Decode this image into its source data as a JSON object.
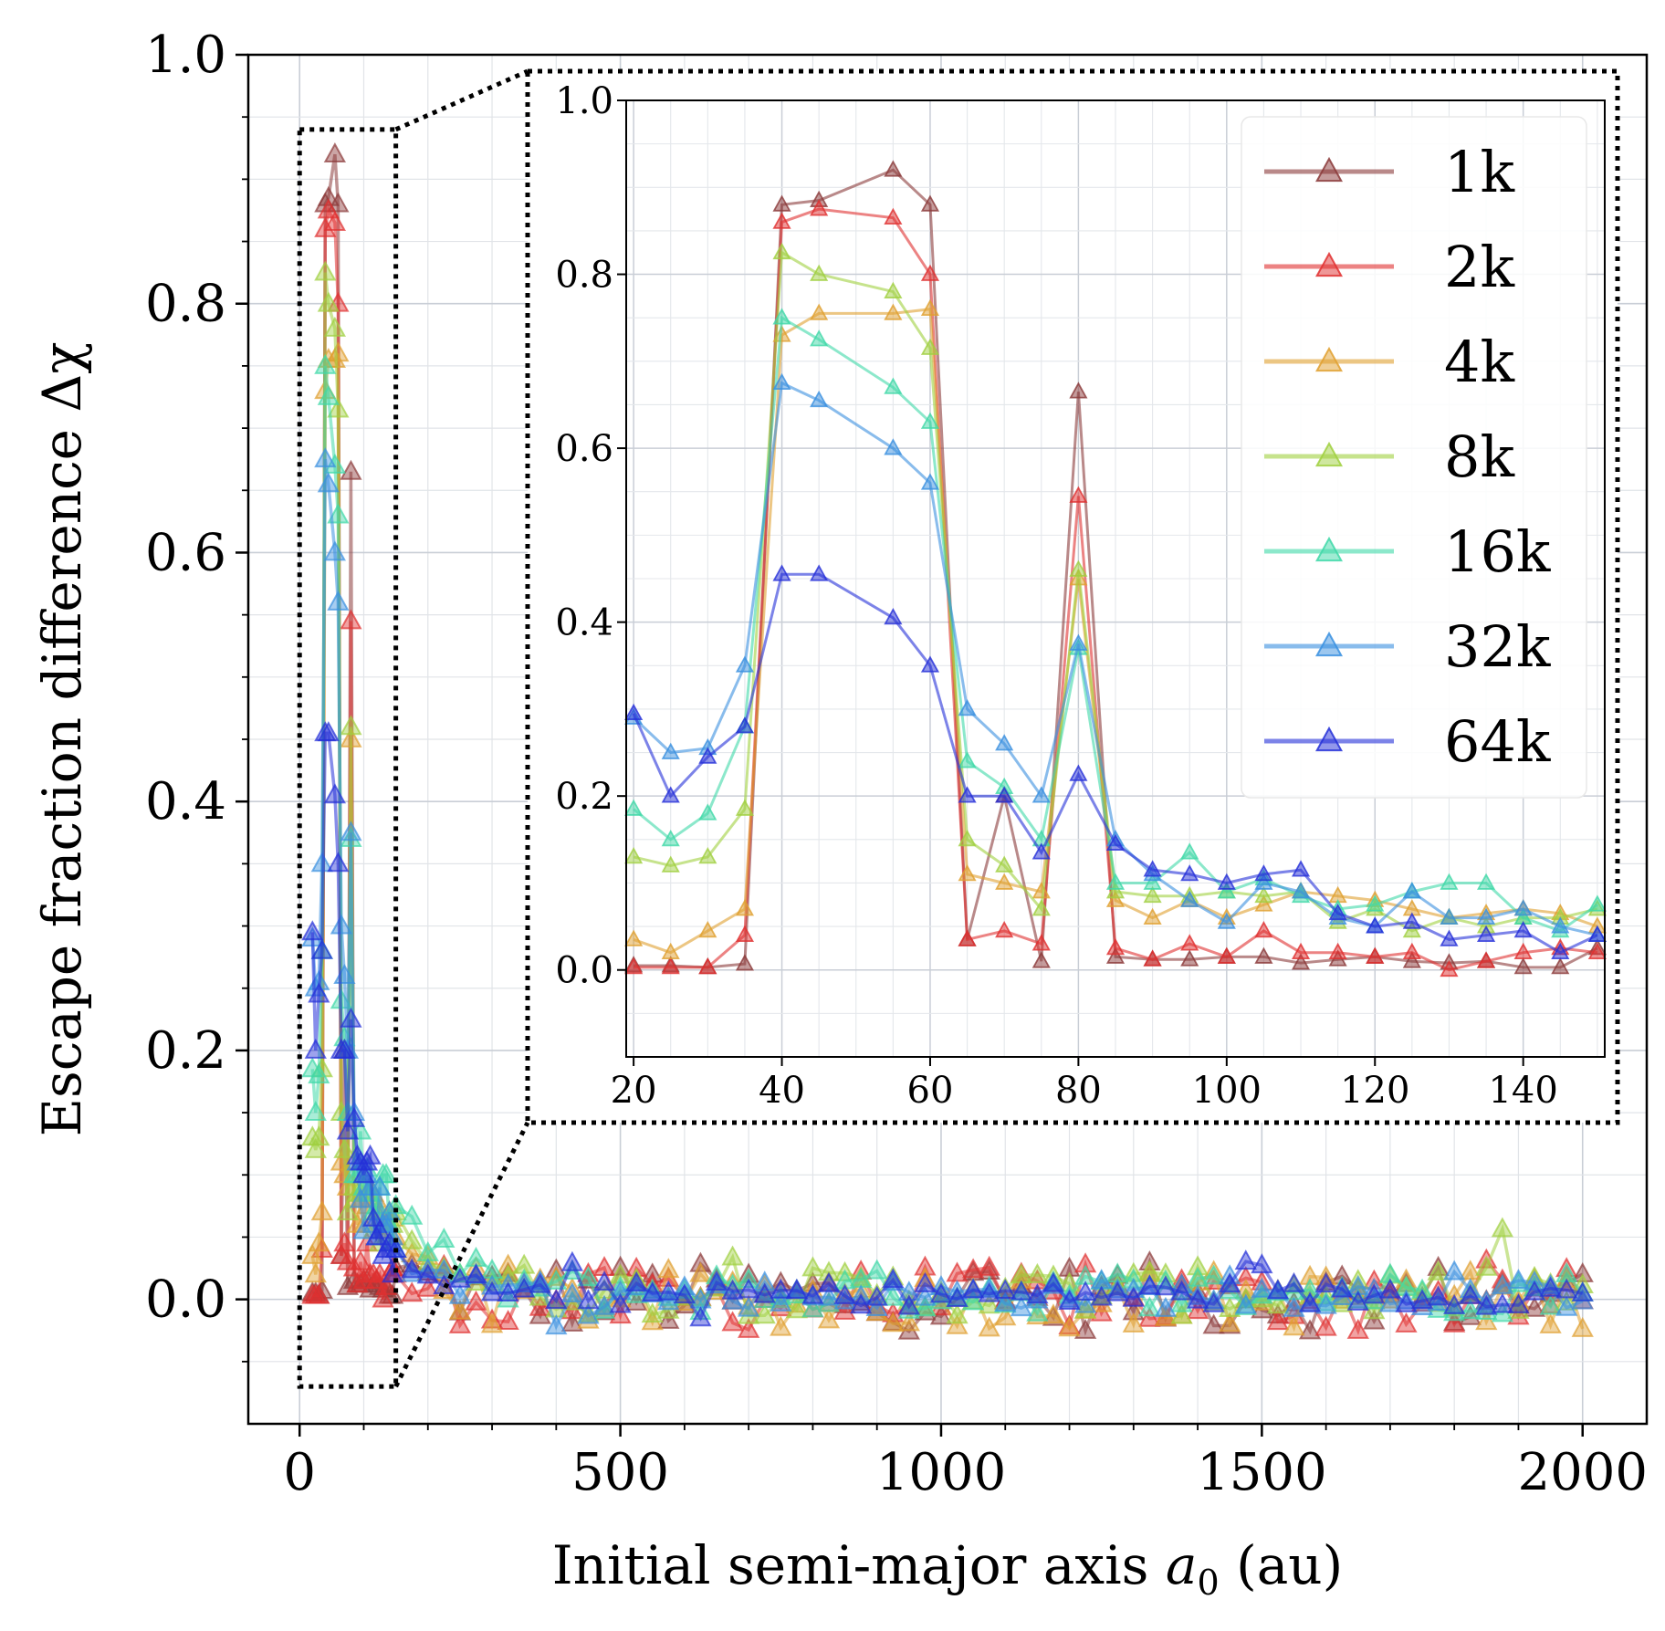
{
  "chart_data": [
    {
      "id": "main",
      "type": "line",
      "marker": "triangle",
      "xlabel_prefix": "Initial semi-major axis ",
      "xlabel_var": "a",
      "xlabel_sub": "0",
      "xlabel_suffix": " (au)",
      "ylabel": "Escape fraction difference Δχ",
      "xlim": [
        -80,
        2100
      ],
      "ylim": [
        -0.1,
        1.0
      ],
      "xticks": [
        0,
        500,
        1000,
        1500,
        2000
      ],
      "xtick_labels": [
        "0",
        "500",
        "1000",
        "1500",
        "2000"
      ],
      "yticks": [
        0.0,
        0.2,
        0.4,
        0.6,
        0.8,
        1.0
      ],
      "ytick_labels": [
        "0.0",
        "0.2",
        "0.4",
        "0.6",
        "0.8",
        "1.0"
      ],
      "grid": true,
      "zoom_box": {
        "x": [
          0,
          150
        ],
        "y": [
          -0.07,
          0.94
        ]
      }
    },
    {
      "id": "inset",
      "type": "line",
      "marker": "triangle",
      "xlim": [
        19,
        151
      ],
      "ylim": [
        -0.1,
        1.0
      ],
      "xticks": [
        20,
        40,
        60,
        80,
        100,
        120,
        140
      ],
      "xtick_labels": [
        "20",
        "40",
        "60",
        "80",
        "100",
        "120",
        "140"
      ],
      "yticks": [
        0.0,
        0.2,
        0.4,
        0.6,
        0.8,
        1.0
      ],
      "ytick_labels": [
        "0.0",
        "0.2",
        "0.4",
        "0.6",
        "0.8",
        "1.0"
      ],
      "grid": true,
      "legend_position": "top-right",
      "x": [
        20,
        25,
        30,
        35,
        40,
        45,
        55,
        60,
        65,
        70,
        75,
        80,
        85,
        90,
        95,
        100,
        105,
        110,
        115,
        120,
        125,
        130,
        135,
        140,
        145,
        150
      ],
      "series": [
        {
          "name": "1k",
          "color": "#8b3a3a",
          "values": [
            0.005,
            0.005,
            0.003,
            0.007,
            0.88,
            0.885,
            0.92,
            0.88,
            0.035,
            0.2,
            0.01,
            0.665,
            0.015,
            0.012,
            0.012,
            0.015,
            0.015,
            0.008,
            0.012,
            0.015,
            0.01,
            0.008,
            0.01,
            0.003,
            0.003,
            0.025
          ]
        },
        {
          "name": "2k",
          "color": "#e03030",
          "values": [
            0.003,
            0.003,
            0.003,
            0.04,
            0.86,
            0.875,
            0.865,
            0.8,
            0.035,
            0.045,
            0.03,
            0.545,
            0.025,
            0.012,
            0.03,
            0.015,
            0.045,
            0.02,
            0.02,
            0.015,
            0.02,
            0.0,
            0.01,
            0.02,
            0.025,
            0.02
          ]
        },
        {
          "name": "4k",
          "color": "#e0a030",
          "values": [
            0.035,
            0.02,
            0.045,
            0.07,
            0.73,
            0.755,
            0.755,
            0.76,
            0.11,
            0.1,
            0.09,
            0.45,
            0.08,
            0.06,
            0.08,
            0.06,
            0.075,
            0.09,
            0.085,
            0.08,
            0.07,
            0.06,
            0.065,
            0.07,
            0.065,
            0.05
          ]
        },
        {
          "name": "8k",
          "color": "#a0d040",
          "values": [
            0.13,
            0.12,
            0.13,
            0.185,
            0.825,
            0.8,
            0.78,
            0.715,
            0.15,
            0.12,
            0.07,
            0.46,
            0.09,
            0.085,
            0.085,
            0.09,
            0.085,
            0.09,
            0.055,
            0.07,
            0.045,
            0.06,
            0.05,
            0.06,
            0.06,
            0.07
          ]
        },
        {
          "name": "16k",
          "color": "#40d8a8",
          "values": [
            0.185,
            0.15,
            0.18,
            0.28,
            0.75,
            0.725,
            0.67,
            0.63,
            0.24,
            0.21,
            0.15,
            0.37,
            0.1,
            0.1,
            0.135,
            0.09,
            0.105,
            0.085,
            0.07,
            0.075,
            0.09,
            0.1,
            0.1,
            0.06,
            0.045,
            0.075
          ]
        },
        {
          "name": "32k",
          "color": "#3a90e0",
          "values": [
            0.29,
            0.25,
            0.255,
            0.35,
            0.675,
            0.655,
            0.6,
            0.56,
            0.3,
            0.26,
            0.2,
            0.375,
            0.15,
            0.11,
            0.08,
            0.055,
            0.1,
            0.09,
            0.06,
            0.05,
            0.09,
            0.06,
            0.06,
            0.07,
            0.05,
            0.04
          ]
        },
        {
          "name": "64k",
          "color": "#2530d8",
          "values": [
            0.295,
            0.2,
            0.245,
            0.28,
            0.455,
            0.455,
            0.405,
            0.35,
            0.2,
            0.2,
            0.135,
            0.225,
            0.145,
            0.115,
            0.11,
            0.1,
            0.11,
            0.115,
            0.065,
            0.05,
            0.055,
            0.035,
            0.04,
            0.045,
            0.02,
            0.04
          ]
        }
      ]
    }
  ]
}
